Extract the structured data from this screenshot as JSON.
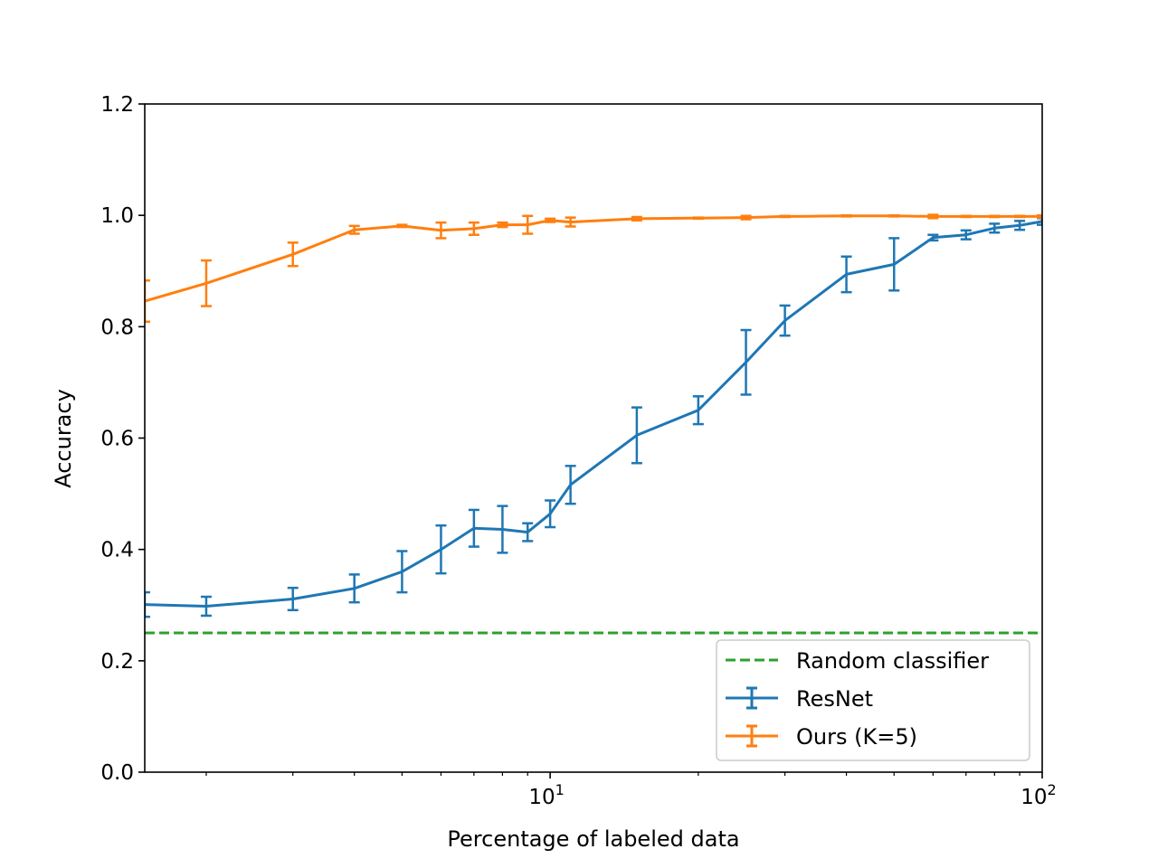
{
  "chart_data": {
    "type": "line",
    "xlabel": "Percentage of labeled data",
    "ylabel": "Accuracy",
    "xscale": "log",
    "xlim": [
      1.5,
      100
    ],
    "ylim": [
      0.0,
      1.2
    ],
    "xticks": [
      {
        "value": 10,
        "base": "10",
        "exp": "1"
      },
      {
        "value": 100,
        "base": "10",
        "exp": "2"
      }
    ],
    "yticks": [
      "0.0",
      "0.2",
      "0.4",
      "0.6",
      "0.8",
      "1.0",
      "1.2"
    ],
    "grid": false,
    "legend_position": "bottom-right",
    "reference_line": {
      "name": "Random classifier",
      "y": 0.25,
      "color": "#2ca02c",
      "style": "dashed"
    },
    "series": [
      {
        "name": "ResNet",
        "color": "#1f77b4",
        "points": [
          {
            "x": 1.5,
            "y": 0.301,
            "err": 0.022
          },
          {
            "x": 2,
            "y": 0.298,
            "err": 0.017
          },
          {
            "x": 3,
            "y": 0.311,
            "err": 0.02
          },
          {
            "x": 4,
            "y": 0.33,
            "err": 0.025
          },
          {
            "x": 5,
            "y": 0.36,
            "err": 0.037
          },
          {
            "x": 6,
            "y": 0.4,
            "err": 0.043
          },
          {
            "x": 7,
            "y": 0.438,
            "err": 0.033
          },
          {
            "x": 8,
            "y": 0.436,
            "err": 0.042
          },
          {
            "x": 9,
            "y": 0.431,
            "err": 0.016
          },
          {
            "x": 10,
            "y": 0.464,
            "err": 0.024
          },
          {
            "x": 11,
            "y": 0.516,
            "err": 0.034
          },
          {
            "x": 15,
            "y": 0.605,
            "err": 0.05
          },
          {
            "x": 20,
            "y": 0.65,
            "err": 0.025
          },
          {
            "x": 25,
            "y": 0.736,
            "err": 0.058
          },
          {
            "x": 30,
            "y": 0.811,
            "err": 0.027
          },
          {
            "x": 40,
            "y": 0.894,
            "err": 0.032
          },
          {
            "x": 50,
            "y": 0.912,
            "err": 0.047
          },
          {
            "x": 60,
            "y": 0.96,
            "err": 0.005
          },
          {
            "x": 70,
            "y": 0.965,
            "err": 0.008
          },
          {
            "x": 80,
            "y": 0.977,
            "err": 0.008
          },
          {
            "x": 90,
            "y": 0.982,
            "err": 0.008
          },
          {
            "x": 100,
            "y": 0.989,
            "err": 0.006
          }
        ]
      },
      {
        "name": "Ours (K=5)",
        "color": "#ff7f0e",
        "points": [
          {
            "x": 1.5,
            "y": 0.846,
            "err": 0.037
          },
          {
            "x": 2,
            "y": 0.878,
            "err": 0.041
          },
          {
            "x": 3,
            "y": 0.93,
            "err": 0.021
          },
          {
            "x": 4,
            "y": 0.974,
            "err": 0.007
          },
          {
            "x": 5,
            "y": 0.981,
            "err": 0.002
          },
          {
            "x": 6,
            "y": 0.973,
            "err": 0.014
          },
          {
            "x": 7,
            "y": 0.976,
            "err": 0.011
          },
          {
            "x": 8,
            "y": 0.983,
            "err": 0.004
          },
          {
            "x": 9,
            "y": 0.983,
            "err": 0.016
          },
          {
            "x": 10,
            "y": 0.991,
            "err": 0.003
          },
          {
            "x": 11,
            "y": 0.988,
            "err": 0.008
          },
          {
            "x": 15,
            "y": 0.994,
            "err": 0.003
          },
          {
            "x": 20,
            "y": 0.995,
            "err": 0.001
          },
          {
            "x": 25,
            "y": 0.996,
            "err": 0.003
          },
          {
            "x": 30,
            "y": 0.998,
            "err": 0.001
          },
          {
            "x": 40,
            "y": 0.999,
            "err": 0.001
          },
          {
            "x": 50,
            "y": 0.999,
            "err": 0.001
          },
          {
            "x": 60,
            "y": 0.998,
            "err": 0.003
          },
          {
            "x": 70,
            "y": 0.998,
            "err": 0.001
          },
          {
            "x": 80,
            "y": 0.998,
            "err": 0.001
          },
          {
            "x": 90,
            "y": 0.998,
            "err": 0.001
          },
          {
            "x": 100,
            "y": 0.998,
            "err": 0.002
          }
        ]
      }
    ]
  }
}
